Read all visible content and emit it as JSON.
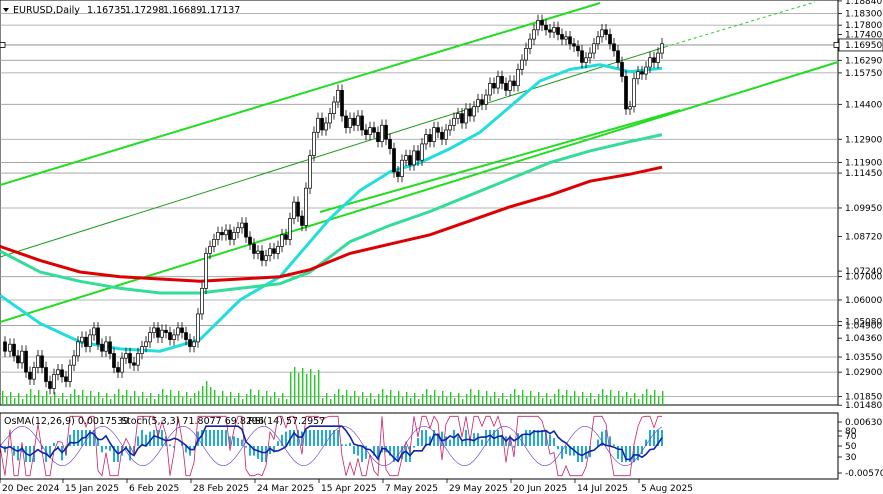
{
  "header": {
    "symbol": "EURUSD,Daily",
    "open": "1.16735",
    "high": "1.17298",
    "low": "1.16689",
    "close": "1.17137"
  },
  "oscillator_header": {
    "osma": "OsMA(12,26,9) 0.0017539",
    "stoch": "Stoch(5,3,3) 71.8077 69.8296",
    "rsi": "RSI(14) 57.2957"
  },
  "chart_data": {
    "type": "candlestick",
    "title": "",
    "price_axis": {
      "range": [
        1.0149,
        1.1888
      ],
      "ticks": [
        "1.18840",
        "1.18300",
        "1.17800",
        "1.17400",
        "1.16950",
        "1.16290",
        "1.15750",
        "1.14400",
        "1.12900",
        "1.11900",
        "1.11450",
        "1.09950",
        "1.08720",
        "1.07240",
        "1.07000",
        "1.06000",
        "1.05080",
        "1.04900",
        "1.04360",
        "1.03550",
        "1.02900",
        "1.01850",
        "1.01480"
      ],
      "current_price": "1.16950"
    },
    "x_axis": {
      "date_labels": [
        "20 Dec 2024",
        "15 Jan 2025",
        "6 Feb 2025",
        "28 Feb 2025",
        "24 Mar 2025",
        "15 Apr 2025",
        "7 May 2025",
        "29 May 2025",
        "20 Jun 2025",
        "14 Jul 2025",
        "5 Aug 2025"
      ]
    },
    "horizontal_levels": [
      1.183,
      1.178,
      1.1695,
      1.1629,
      1.1575,
      1.144,
      1.129,
      1.119,
      1.1145,
      1.0995,
      1.07,
      1.06,
      1.049,
      1.0355,
      1.029,
      1.0185
    ],
    "price_path": [
      [
        0,
        1.042
      ],
      [
        5,
        1.038
      ],
      [
        10,
        1.041
      ],
      [
        14,
        1.036
      ],
      [
        18,
        1.033
      ],
      [
        22,
        1.038
      ],
      [
        26,
        1.029
      ],
      [
        30,
        1.026
      ],
      [
        34,
        1.031
      ],
      [
        38,
        1.036
      ],
      [
        42,
        1.031
      ],
      [
        46,
        1.025
      ],
      [
        50,
        1.022
      ],
      [
        54,
        1.028
      ],
      [
        58,
        1.03
      ],
      [
        62,
        1.027
      ],
      [
        66,
        1.025
      ],
      [
        70,
        1.032
      ],
      [
        74,
        1.036
      ],
      [
        78,
        1.042
      ],
      [
        82,
        1.044
      ],
      [
        86,
        1.04
      ],
      [
        90,
        1.045
      ],
      [
        94,
        1.048
      ],
      [
        98,
        1.041
      ],
      [
        102,
        1.038
      ],
      [
        106,
        1.042
      ],
      [
        110,
        1.037
      ],
      [
        114,
        1.031
      ],
      [
        118,
        1.029
      ],
      [
        122,
        1.035
      ],
      [
        126,
        1.037
      ],
      [
        130,
        1.033
      ],
      [
        134,
        1.032
      ],
      [
        138,
        1.037
      ],
      [
        142,
        1.04
      ],
      [
        146,
        1.042
      ],
      [
        150,
        1.046
      ],
      [
        154,
        1.048
      ],
      [
        158,
        1.044
      ],
      [
        162,
        1.047
      ],
      [
        166,
        1.046
      ],
      [
        170,
        1.043
      ],
      [
        174,
        1.045
      ],
      [
        178,
        1.048
      ],
      [
        182,
        1.046
      ],
      [
        186,
        1.043
      ],
      [
        190,
        1.04
      ],
      [
        194,
        1.042
      ],
      [
        198,
        1.054
      ],
      [
        202,
        1.065
      ],
      [
        206,
        1.08
      ],
      [
        210,
        1.083
      ],
      [
        214,
        1.086
      ],
      [
        218,
        1.089
      ],
      [
        222,
        1.088
      ],
      [
        226,
        1.09
      ],
      [
        230,
        1.086
      ],
      [
        234,
        1.089
      ],
      [
        238,
        1.091
      ],
      [
        242,
        1.093
      ],
      [
        246,
        1.087
      ],
      [
        250,
        1.084
      ],
      [
        254,
        1.08
      ],
      [
        258,
        1.081
      ],
      [
        262,
        1.077
      ],
      [
        266,
        1.079
      ],
      [
        270,
        1.082
      ],
      [
        274,
        1.08
      ],
      [
        278,
        1.083
      ],
      [
        282,
        1.088
      ],
      [
        286,
        1.086
      ],
      [
        290,
        1.095
      ],
      [
        294,
        1.102
      ],
      [
        298,
        1.096
      ],
      [
        302,
        1.092
      ],
      [
        306,
        1.108
      ],
      [
        310,
        1.122
      ],
      [
        314,
        1.132
      ],
      [
        318,
        1.138
      ],
      [
        322,
        1.133
      ],
      [
        326,
        1.136
      ],
      [
        330,
        1.14
      ],
      [
        334,
        1.145
      ],
      [
        338,
        1.15
      ],
      [
        342,
        1.139
      ],
      [
        346,
        1.134
      ],
      [
        350,
        1.138
      ],
      [
        354,
        1.135
      ],
      [
        358,
        1.139
      ],
      [
        362,
        1.133
      ],
      [
        366,
        1.131
      ],
      [
        370,
        1.134
      ],
      [
        374,
        1.132
      ],
      [
        378,
        1.128
      ],
      [
        382,
        1.135
      ],
      [
        386,
        1.129
      ],
      [
        390,
        1.125
      ],
      [
        394,
        1.115
      ],
      [
        398,
        1.113
      ],
      [
        402,
        1.12
      ],
      [
        406,
        1.122
      ],
      [
        410,
        1.118
      ],
      [
        414,
        1.124
      ],
      [
        418,
        1.12
      ],
      [
        422,
        1.127
      ],
      [
        426,
        1.131
      ],
      [
        430,
        1.128
      ],
      [
        434,
        1.134
      ],
      [
        438,
        1.132
      ],
      [
        442,
        1.129
      ],
      [
        446,
        1.133
      ],
      [
        450,
        1.135
      ],
      [
        454,
        1.138
      ],
      [
        458,
        1.14
      ],
      [
        462,
        1.136
      ],
      [
        466,
        1.142
      ],
      [
        470,
        1.139
      ],
      [
        474,
        1.143
      ],
      [
        478,
        1.146
      ],
      [
        482,
        1.144
      ],
      [
        486,
        1.148
      ],
      [
        490,
        1.153
      ],
      [
        494,
        1.151
      ],
      [
        498,
        1.156
      ],
      [
        502,
        1.153
      ],
      [
        506,
        1.15
      ],
      [
        510,
        1.154
      ],
      [
        514,
        1.152
      ],
      [
        518,
        1.159
      ],
      [
        522,
        1.163
      ],
      [
        526,
        1.168
      ],
      [
        530,
        1.172
      ],
      [
        534,
        1.176
      ],
      [
        538,
        1.18
      ],
      [
        542,
        1.178
      ],
      [
        546,
        1.176
      ],
      [
        550,
        1.175
      ],
      [
        554,
        1.177
      ],
      [
        558,
        1.174
      ],
      [
        562,
        1.172
      ],
      [
        566,
        1.173
      ],
      [
        570,
        1.17
      ],
      [
        574,
        1.169
      ],
      [
        578,
        1.167
      ],
      [
        582,
        1.162
      ],
      [
        586,
        1.164
      ],
      [
        590,
        1.166
      ],
      [
        594,
        1.17
      ],
      [
        598,
        1.173
      ],
      [
        602,
        1.176
      ],
      [
        606,
        1.174
      ],
      [
        610,
        1.17
      ],
      [
        614,
        1.167
      ],
      [
        618,
        1.162
      ],
      [
        622,
        1.156
      ],
      [
        626,
        1.142
      ],
      [
        630,
        1.143
      ],
      [
        634,
        1.155
      ],
      [
        638,
        1.158
      ],
      [
        642,
        1.157
      ],
      [
        646,
        1.16
      ],
      [
        650,
        1.164
      ],
      [
        654,
        1.162
      ],
      [
        658,
        1.166
      ],
      [
        662,
        1.17
      ]
    ],
    "moving_averages": [
      {
        "color": "#22dddd",
        "values": [
          [
            0,
            1.062
          ],
          [
            40,
            1.05
          ],
          [
            80,
            1.042
          ],
          [
            120,
            1.039
          ],
          [
            160,
            1.038
          ],
          [
            200,
            1.043
          ],
          [
            240,
            1.06
          ],
          [
            280,
            1.07
          ],
          [
            300,
            1.08
          ],
          [
            330,
            1.095
          ],
          [
            360,
            1.107
          ],
          [
            390,
            1.115
          ],
          [
            420,
            1.119
          ],
          [
            450,
            1.125
          ],
          [
            480,
            1.132
          ],
          [
            510,
            1.143
          ],
          [
            540,
            1.154
          ],
          [
            570,
            1.159
          ],
          [
            600,
            1.161
          ],
          [
            630,
            1.158
          ],
          [
            662,
            1.1595
          ]
        ]
      },
      {
        "color": "#33dd99",
        "values": [
          [
            0,
            1.081
          ],
          [
            40,
            1.072
          ],
          [
            80,
            1.068
          ],
          [
            120,
            1.065
          ],
          [
            160,
            1.063
          ],
          [
            200,
            1.063
          ],
          [
            240,
            1.065
          ],
          [
            280,
            1.067
          ],
          [
            310,
            1.072
          ],
          [
            350,
            1.085
          ],
          [
            390,
            1.092
          ],
          [
            430,
            1.098
          ],
          [
            470,
            1.105
          ],
          [
            510,
            1.112
          ],
          [
            550,
            1.119
          ],
          [
            590,
            1.124
          ],
          [
            630,
            1.128
          ],
          [
            662,
            1.131
          ]
        ]
      },
      {
        "color": "#dd0000",
        "values": [
          [
            0,
            1.083
          ],
          [
            40,
            1.077
          ],
          [
            80,
            1.072
          ],
          [
            120,
            1.07
          ],
          [
            160,
            1.069
          ],
          [
            200,
            1.068
          ],
          [
            240,
            1.069
          ],
          [
            280,
            1.07
          ],
          [
            310,
            1.073
          ],
          [
            350,
            1.08
          ],
          [
            390,
            1.084
          ],
          [
            430,
            1.088
          ],
          [
            470,
            1.094
          ],
          [
            510,
            1.1
          ],
          [
            550,
            1.105
          ],
          [
            590,
            1.111
          ],
          [
            630,
            1.114
          ],
          [
            662,
            1.117
          ]
        ]
      }
    ],
    "oscillator": {
      "levels": [
        "0.006303",
        "80",
        "70",
        "50",
        "30",
        "-0.005702"
      ]
    }
  }
}
